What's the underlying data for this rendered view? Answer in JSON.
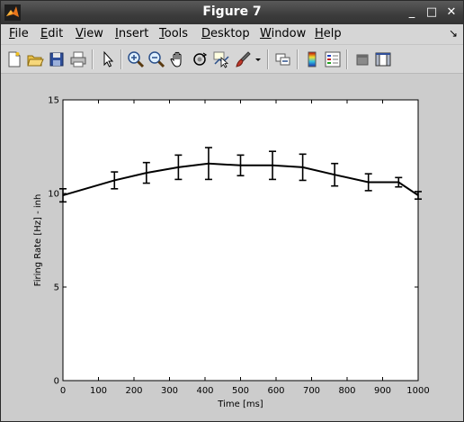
{
  "window": {
    "title": "Figure 7",
    "minimize_label": "_",
    "maximize_label": "□",
    "close_label": "✕"
  },
  "menu": [
    {
      "label": "File",
      "mnemonic": "F",
      "rest": "ile"
    },
    {
      "label": "Edit",
      "mnemonic": "E",
      "rest": "dit"
    },
    {
      "label": "View",
      "mnemonic": "V",
      "rest": "iew"
    },
    {
      "label": "Insert",
      "mnemonic": "I",
      "rest": "nsert"
    },
    {
      "label": "Tools",
      "mnemonic": "T",
      "rest": "ools"
    },
    {
      "label": "Desktop",
      "mnemonic": "D",
      "rest": "esktop"
    },
    {
      "label": "Window",
      "mnemonic": "W",
      "rest": "indow"
    },
    {
      "label": "Help",
      "mnemonic": "H",
      "rest": "elp"
    }
  ],
  "menu_dock_icon": "dock-arrow-icon",
  "toolbar": [
    {
      "icon": "new-figure-icon"
    },
    {
      "icon": "open-file-icon"
    },
    {
      "icon": "save-icon"
    },
    {
      "icon": "print-icon"
    },
    {
      "icon": "separator"
    },
    {
      "icon": "edit-plot-arrow-icon"
    },
    {
      "icon": "separator"
    },
    {
      "icon": "zoom-in-icon"
    },
    {
      "icon": "zoom-out-icon"
    },
    {
      "icon": "pan-hand-icon"
    },
    {
      "icon": "rotate-3d-icon"
    },
    {
      "icon": "data-cursor-icon"
    },
    {
      "icon": "brush-icon"
    },
    {
      "icon": "brush-dropdown-icon"
    },
    {
      "icon": "separator"
    },
    {
      "icon": "link-plot-icon"
    },
    {
      "icon": "separator"
    },
    {
      "icon": "colorbar-icon"
    },
    {
      "icon": "legend-icon"
    },
    {
      "icon": "separator"
    },
    {
      "icon": "hide-plot-tools-icon"
    },
    {
      "icon": "show-plot-tools-icon"
    }
  ],
  "chart_data": {
    "type": "line",
    "title": "",
    "xlabel": "Time [ms]",
    "ylabel": "Firing Rate [Hz] - inh",
    "xlim": [
      0,
      1000
    ],
    "ylim": [
      0,
      15
    ],
    "xticks": [
      0,
      100,
      200,
      300,
      400,
      500,
      600,
      700,
      800,
      900,
      1000
    ],
    "yticks": [
      0,
      5,
      10,
      15
    ],
    "grid": false,
    "line_color": "#000000",
    "series": [
      {
        "x": [
          0,
          145,
          235,
          325,
          410,
          500,
          590,
          675,
          765,
          860,
          945,
          1000
        ],
        "y": [
          9.9,
          10.7,
          11.1,
          11.4,
          11.6,
          11.5,
          11.5,
          11.4,
          11.0,
          10.6,
          10.6,
          9.9
        ],
        "err": [
          0.35,
          0.45,
          0.55,
          0.65,
          0.85,
          0.55,
          0.75,
          0.7,
          0.6,
          0.45,
          0.25,
          0.2
        ]
      }
    ]
  }
}
